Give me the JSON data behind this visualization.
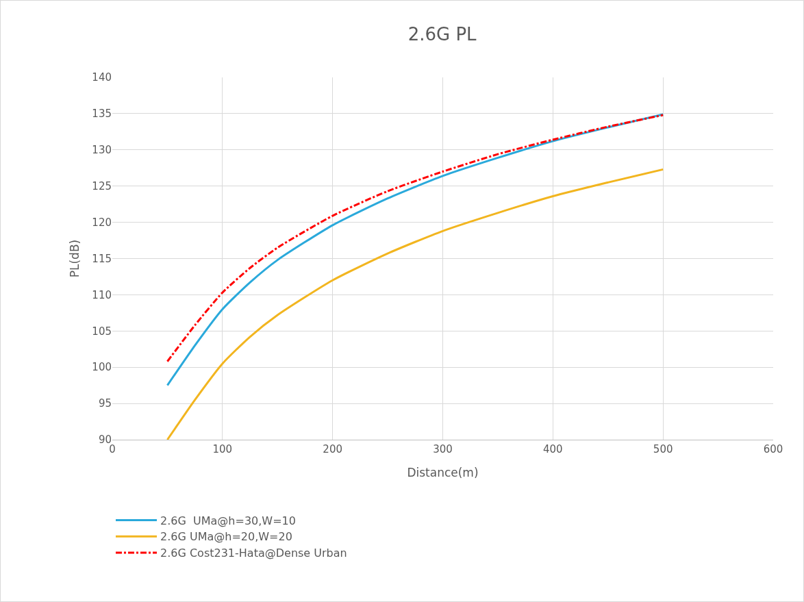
{
  "chart_data": {
    "type": "line",
    "title": "2.6G PL",
    "xlabel": "Distance(m)",
    "ylabel": "PL(dB)",
    "xlim": [
      0,
      600
    ],
    "xticks": [
      0,
      100,
      200,
      300,
      400,
      500,
      600
    ],
    "ylim": [
      90,
      140
    ],
    "yticks": [
      90,
      95,
      100,
      105,
      110,
      115,
      120,
      125,
      130,
      135,
      140
    ],
    "grid": true,
    "legend": "bottom",
    "marker": "none",
    "series": [
      {
        "name": "2.6G  UMa@h=30,W=10",
        "color": "#2aa9db",
        "line_style": "solid",
        "x": [
          50,
          75,
          100,
          125,
          150,
          200,
          250,
          300,
          350,
          400,
          450,
          500
        ],
        "values": [
          97.5,
          103,
          108,
          111.7,
          114.8,
          119.6,
          123.3,
          126.4,
          128.9,
          131.2,
          133.1,
          134.9
        ]
      },
      {
        "name": "2.6G UMa@h=20,W=20",
        "color": "#f2b51f",
        "line_style": "solid",
        "x": [
          50,
          75,
          100,
          125,
          150,
          200,
          250,
          300,
          350,
          400,
          450,
          500
        ],
        "values": [
          90,
          95.5,
          100.5,
          104.2,
          107.2,
          112.0,
          115.7,
          118.8,
          121.3,
          123.6,
          125.5,
          127.3
        ]
      },
      {
        "name": "2.6G Cost231-Hata@Dense Urban",
        "color": "#ff0000",
        "line_style": "dashed",
        "x": [
          50,
          75,
          100,
          125,
          150,
          200,
          250,
          300,
          350,
          400,
          450,
          500
        ],
        "values": [
          100.8,
          105.8,
          110.3,
          113.7,
          116.5,
          120.9,
          124.3,
          127.0,
          129.4,
          131.4,
          133.2,
          134.8
        ]
      }
    ]
  }
}
